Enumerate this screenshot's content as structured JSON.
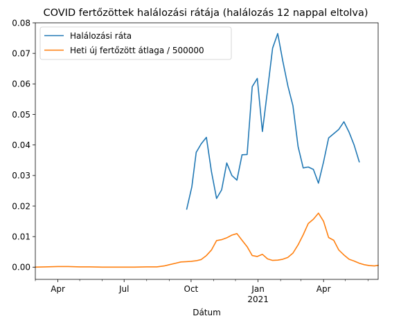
{
  "chart_data": {
    "type": "line",
    "title": "COVID fertőzöttek halálozási rátája (halálozás 12 nappal eltolva)",
    "xlabel": "Dátum",
    "ylabel": "",
    "x_axis": {
      "kind": "date",
      "range": [
        "2020-03-01",
        "2021-06-15"
      ],
      "major_ticks": [
        {
          "date": "2020-04-01",
          "label": "Apr",
          "sublabel": ""
        },
        {
          "date": "2020-07-01",
          "label": "Jul",
          "sublabel": ""
        },
        {
          "date": "2020-10-01",
          "label": "Oct",
          "sublabel": ""
        },
        {
          "date": "2021-01-01",
          "label": "Jan",
          "sublabel": "2021"
        },
        {
          "date": "2021-04-01",
          "label": "Apr",
          "sublabel": ""
        }
      ],
      "minor_ticks": [
        "2020-03-01",
        "2020-05-01",
        "2020-06-01",
        "2020-08-01",
        "2020-09-01",
        "2020-11-01",
        "2020-12-01",
        "2021-02-01",
        "2021-03-01",
        "2021-05-01",
        "2021-06-01"
      ]
    },
    "ylim": [
      -0.004,
      0.08
    ],
    "y_ticks": [
      {
        "value": 0.0,
        "label": "0.00"
      },
      {
        "value": 0.01,
        "label": "0.01"
      },
      {
        "value": 0.02,
        "label": "0.02"
      },
      {
        "value": 0.03,
        "label": "0.03"
      },
      {
        "value": 0.04,
        "label": "0.04"
      },
      {
        "value": 0.05,
        "label": "0.05"
      },
      {
        "value": 0.06,
        "label": "0.06"
      },
      {
        "value": 0.07,
        "label": "0.07"
      },
      {
        "value": 0.08,
        "label": "0.08"
      }
    ],
    "grid": false,
    "legend": "top-left",
    "series": [
      {
        "name": "Halálozási ráta",
        "color": "#1f77b4",
        "points": [
          [
            "2020-09-25",
            0.019
          ],
          [
            "2020-10-02",
            0.0263
          ],
          [
            "2020-10-08",
            0.0376
          ],
          [
            "2020-10-15",
            0.0404
          ],
          [
            "2020-10-22",
            0.0425
          ],
          [
            "2020-10-29",
            0.0313
          ],
          [
            "2020-11-05",
            0.0225
          ],
          [
            "2020-11-12",
            0.0253
          ],
          [
            "2020-11-19",
            0.0341
          ],
          [
            "2020-11-26",
            0.03
          ],
          [
            "2020-12-03",
            0.0285
          ],
          [
            "2020-12-10",
            0.0368
          ],
          [
            "2020-12-17",
            0.0369
          ],
          [
            "2020-12-24",
            0.0591
          ],
          [
            "2020-12-31",
            0.0618
          ],
          [
            "2021-01-07",
            0.0444
          ],
          [
            "2021-01-14",
            0.058
          ],
          [
            "2021-01-21",
            0.0717
          ],
          [
            "2021-01-28",
            0.0765
          ],
          [
            "2021-02-04",
            0.0675
          ],
          [
            "2021-02-11",
            0.0593
          ],
          [
            "2021-02-18",
            0.0528
          ],
          [
            "2021-02-25",
            0.0395
          ],
          [
            "2021-03-04",
            0.0325
          ],
          [
            "2021-03-11",
            0.0328
          ],
          [
            "2021-03-18",
            0.032
          ],
          [
            "2021-03-25",
            0.0275
          ],
          [
            "2021-04-01",
            0.0345
          ],
          [
            "2021-04-08",
            0.0423
          ],
          [
            "2021-04-22",
            0.0451
          ],
          [
            "2021-04-29",
            0.0476
          ],
          [
            "2021-05-06",
            0.0442
          ],
          [
            "2021-05-13",
            0.04
          ],
          [
            "2021-05-20",
            0.0345
          ]
        ]
      },
      {
        "name": "Heti új fertőzött átlaga / 500000",
        "color": "#ff7f0e",
        "points": [
          [
            "2020-03-01",
            0.0
          ],
          [
            "2020-03-15",
            0.0001
          ],
          [
            "2020-04-01",
            0.0002
          ],
          [
            "2020-04-15",
            0.0002
          ],
          [
            "2020-05-01",
            0.0001
          ],
          [
            "2020-05-15",
            0.0001
          ],
          [
            "2020-06-01",
            0.0
          ],
          [
            "2020-06-15",
            0.0
          ],
          [
            "2020-07-01",
            0.0
          ],
          [
            "2020-07-15",
            0.0
          ],
          [
            "2020-08-01",
            0.0001
          ],
          [
            "2020-08-15",
            0.0001
          ],
          [
            "2020-08-25",
            0.0004
          ],
          [
            "2020-09-01",
            0.0008
          ],
          [
            "2020-09-10",
            0.0013
          ],
          [
            "2020-09-17",
            0.0017
          ],
          [
            "2020-09-24",
            0.0018
          ],
          [
            "2020-10-01",
            0.0019
          ],
          [
            "2020-10-08",
            0.0021
          ],
          [
            "2020-10-15",
            0.0025
          ],
          [
            "2020-10-22",
            0.0038
          ],
          [
            "2020-10-29",
            0.0056
          ],
          [
            "2020-11-05",
            0.0087
          ],
          [
            "2020-11-12",
            0.009
          ],
          [
            "2020-11-19",
            0.0096
          ],
          [
            "2020-11-26",
            0.0105
          ],
          [
            "2020-12-03",
            0.011
          ],
          [
            "2020-12-10",
            0.0088
          ],
          [
            "2020-12-17",
            0.0067
          ],
          [
            "2020-12-24",
            0.0038
          ],
          [
            "2020-12-31",
            0.0035
          ],
          [
            "2021-01-07",
            0.0042
          ],
          [
            "2021-01-14",
            0.0027
          ],
          [
            "2021-01-21",
            0.0022
          ],
          [
            "2021-01-28",
            0.0023
          ],
          [
            "2021-02-04",
            0.0026
          ],
          [
            "2021-02-11",
            0.0032
          ],
          [
            "2021-02-18",
            0.0046
          ],
          [
            "2021-02-25",
            0.0073
          ],
          [
            "2021-03-04",
            0.0106
          ],
          [
            "2021-03-11",
            0.0143
          ],
          [
            "2021-03-18",
            0.0157
          ],
          [
            "2021-03-25",
            0.0177
          ],
          [
            "2021-04-01",
            0.015
          ],
          [
            "2021-04-08",
            0.0097
          ],
          [
            "2021-04-15",
            0.0088
          ],
          [
            "2021-04-22",
            0.0056
          ],
          [
            "2021-04-29",
            0.004
          ],
          [
            "2021-05-06",
            0.0026
          ],
          [
            "2021-05-13",
            0.002
          ],
          [
            "2021-05-20",
            0.0013
          ],
          [
            "2021-05-27",
            0.0008
          ],
          [
            "2021-06-03",
            0.0005
          ],
          [
            "2021-06-10",
            0.0004
          ],
          [
            "2021-06-15",
            0.0006
          ]
        ]
      }
    ]
  }
}
